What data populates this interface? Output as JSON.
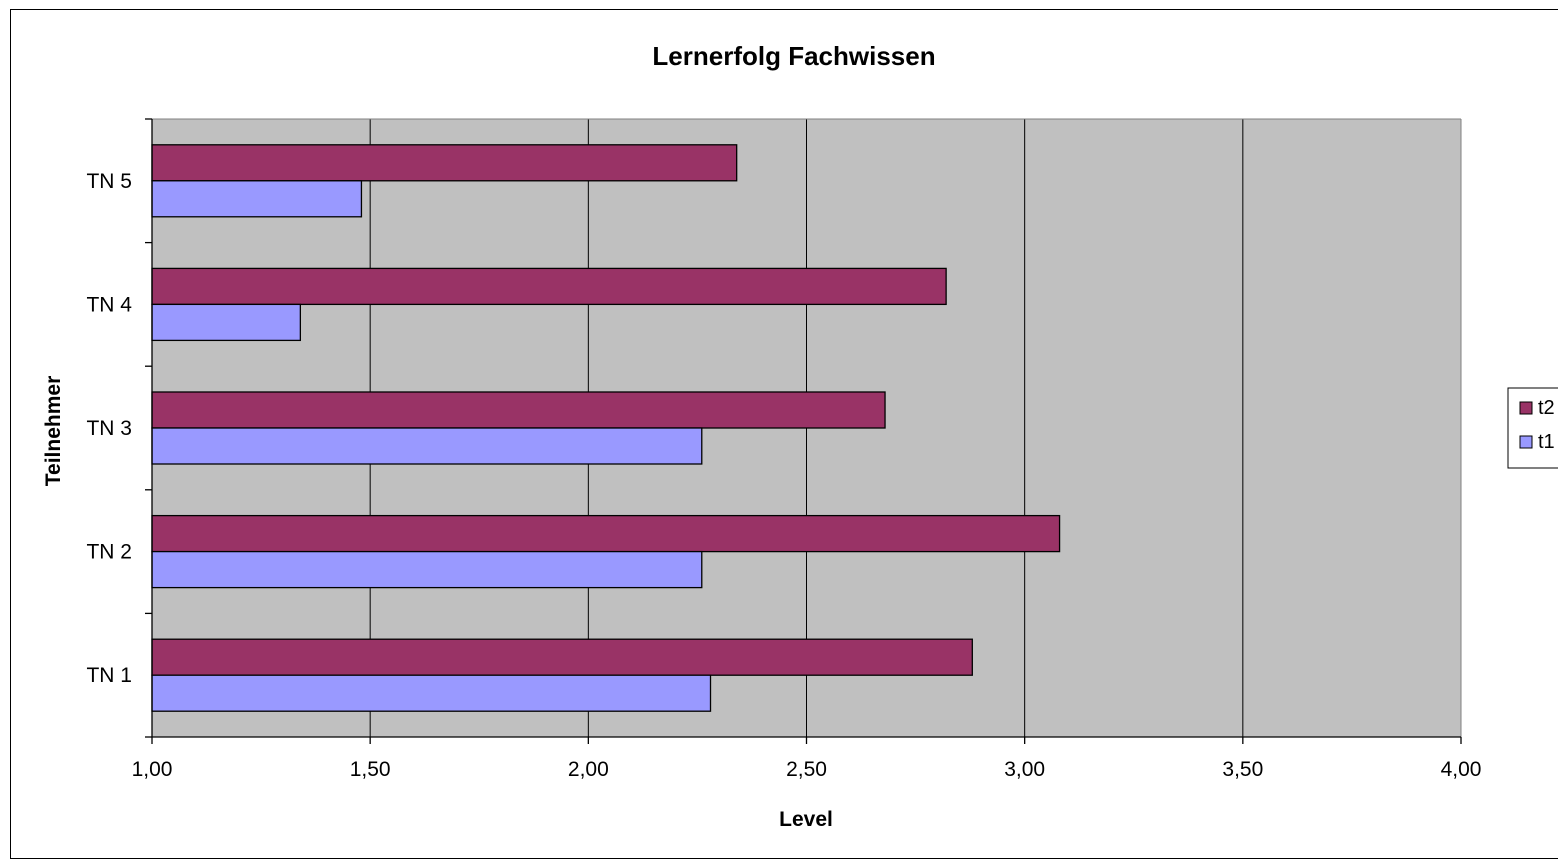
{
  "chart_data": {
    "type": "bar",
    "orientation": "horizontal",
    "title": "Lernerfolg Fachwissen",
    "xlabel": "Level",
    "ylabel": "Teilnehmer",
    "categories": [
      "TN 1",
      "TN 2",
      "TN 3",
      "TN 4",
      "TN 5"
    ],
    "series": [
      {
        "name": "t1",
        "values": [
          2.28,
          2.26,
          2.26,
          1.34,
          1.48
        ],
        "color": "#9999ff"
      },
      {
        "name": "t2",
        "values": [
          2.88,
          3.08,
          2.68,
          2.82,
          2.34
        ],
        "color": "#993366"
      }
    ],
    "xlim": [
      1.0,
      4.0
    ],
    "xticks": [
      "1,00",
      "1,50",
      "2,00",
      "2,50",
      "3,00",
      "3,50",
      "4,00"
    ],
    "grid": "vertical",
    "plot_background": "#c0c0c0",
    "legend": [
      "t2",
      "t1"
    ],
    "legend_position": "right"
  }
}
